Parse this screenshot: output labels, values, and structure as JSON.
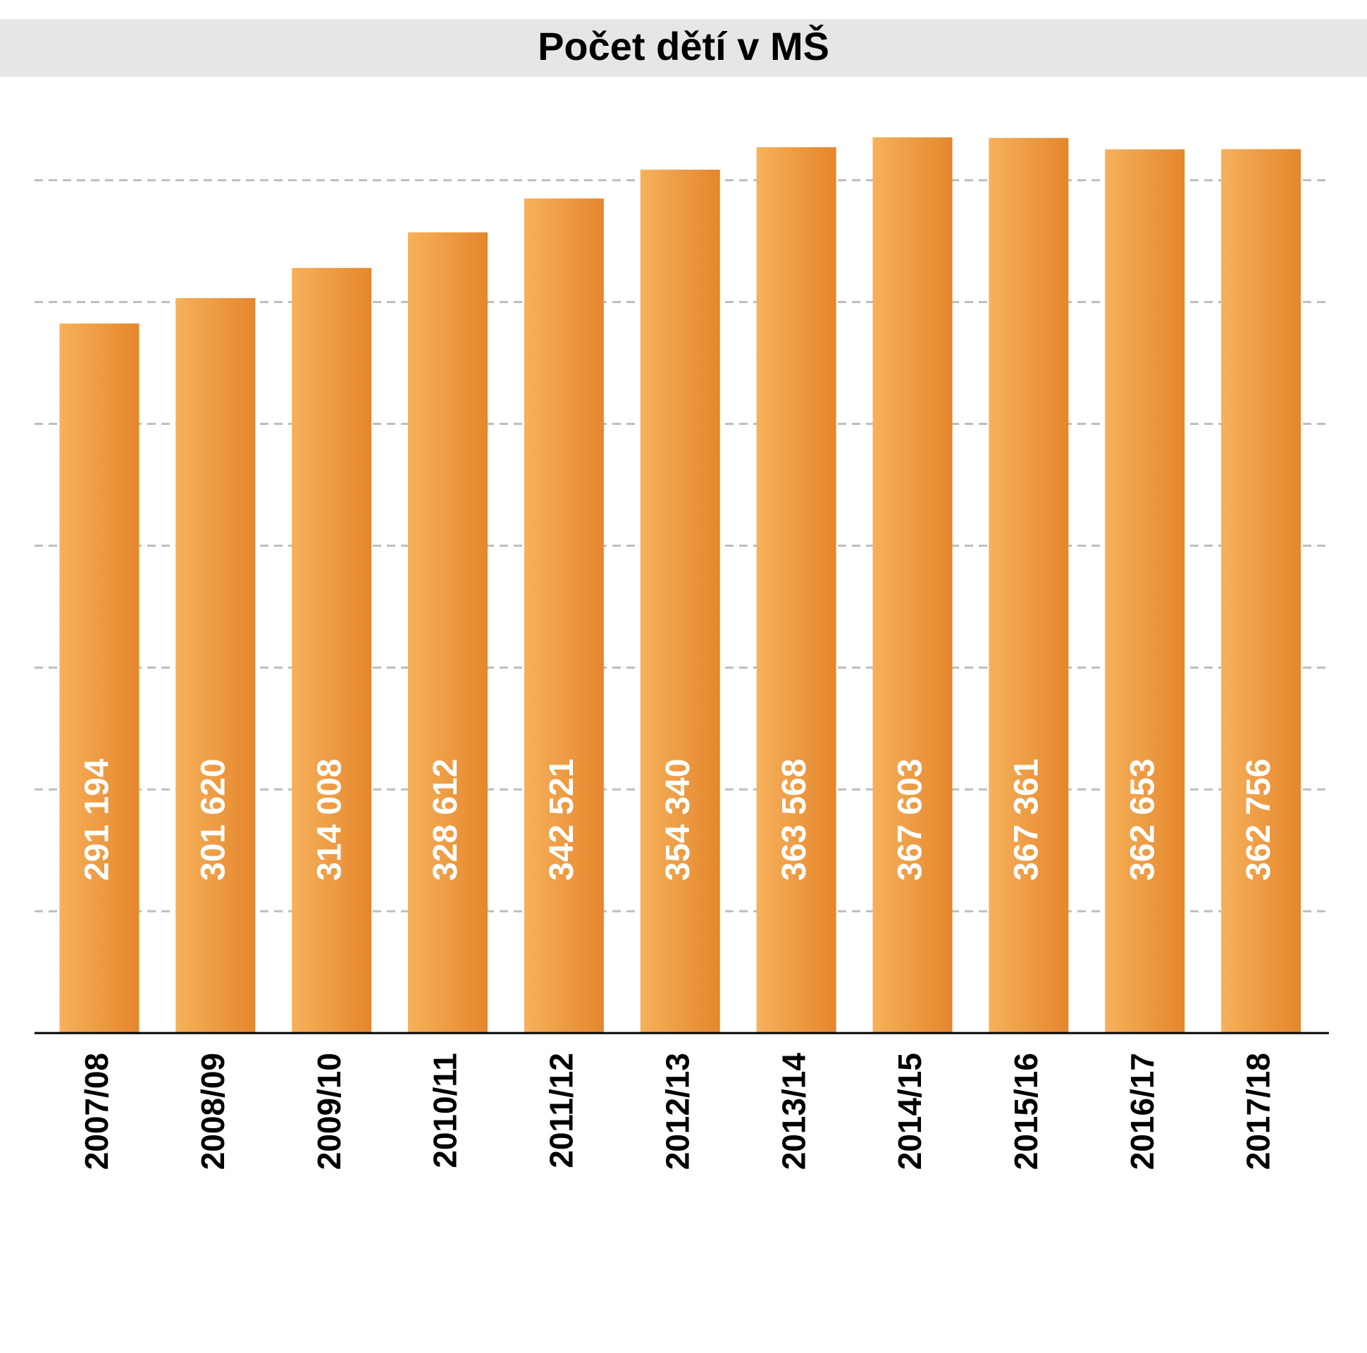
{
  "chart_data": {
    "type": "bar",
    "title": "Počet dětí v MŠ",
    "categories": [
      "2007/08",
      "2008/09",
      "2009/10",
      "2010/11",
      "2011/12",
      "2012/13",
      "2013/14",
      "2014/15",
      "2015/16",
      "2016/17",
      "2017/18"
    ],
    "values": [
      291194,
      301620,
      314008,
      328612,
      342521,
      354340,
      363568,
      367603,
      367361,
      362653,
      362756
    ],
    "value_labels": [
      "291 194",
      "301 620",
      "314 008",
      "328 612",
      "342 521",
      "354 340",
      "363 568",
      "367 603",
      "367 361",
      "362 653",
      "362 756"
    ],
    "color": "#ec9333",
    "ylim": [
      0,
      380000
    ],
    "yticks": [
      0,
      50000,
      100000,
      150000,
      200000,
      250000,
      300000,
      350000
    ],
    "grid": true
  }
}
